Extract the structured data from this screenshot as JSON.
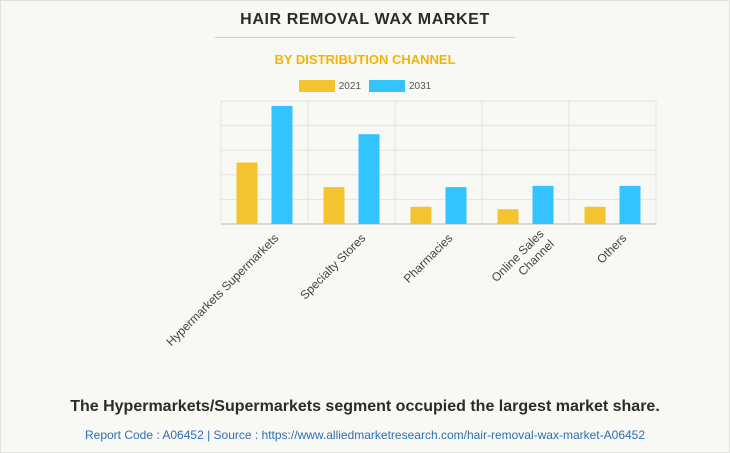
{
  "header": {
    "title": "HAIR REMOVAL WAX MARKET",
    "subtitle": "BY DISTRIBUTION CHANNEL"
  },
  "legend": [
    {
      "label": "2021",
      "color": "#f4c430"
    },
    {
      "label": "2031",
      "color": "#33c3ff"
    }
  ],
  "chart_data": {
    "type": "bar",
    "categories": [
      [
        "Hypermarkets Supermarkets"
      ],
      [
        "Specialty Stores"
      ],
      [
        "Pharmacies"
      ],
      [
        "Online Sales",
        "Channel"
      ],
      [
        "Others"
      ]
    ],
    "series": [
      {
        "name": "2021",
        "color": "#f4c430",
        "values": [
          2.5,
          1.5,
          0.7,
          0.6,
          0.7
        ]
      },
      {
        "name": "2031",
        "color": "#33c3ff",
        "values": [
          4.8,
          3.65,
          1.5,
          1.55,
          1.55
        ]
      }
    ],
    "ylim": [
      0,
      5
    ],
    "grid": true,
    "legend_position": "top"
  },
  "caption": "The Hypermarkets/Supermarkets segment occupied the largest market share.",
  "footer": "Report Code : A06452  |  Source : https://www.alliedmarketresearch.com/hair-removal-wax-market-A06452"
}
